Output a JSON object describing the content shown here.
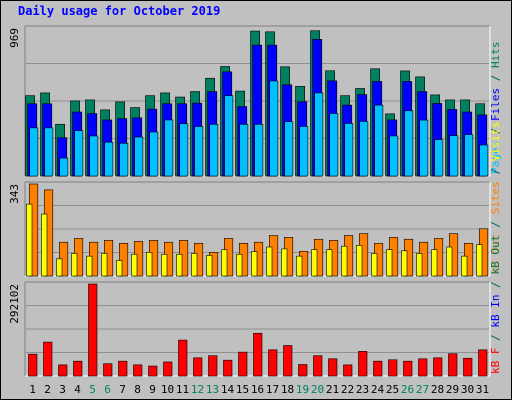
{
  "title": "Daily usage for October 2019",
  "chart_data": [
    {
      "type": "bar",
      "panel": "pages-files-hits",
      "x": [
        1,
        2,
        3,
        4,
        5,
        6,
        7,
        8,
        9,
        10,
        11,
        12,
        13,
        14,
        15,
        16,
        17,
        18,
        19,
        20,
        21,
        22,
        23,
        24,
        25,
        26,
        27,
        28,
        29,
        30,
        31
      ],
      "ymax_label": "969",
      "ylim": [
        0,
        969
      ],
      "grid": true,
      "right_label": [
        {
          "text": "Pages",
          "color": "#00c0ff"
        },
        {
          "text": " / ",
          "color": "#006060"
        },
        {
          "text": "Files",
          "color": "#0000ff"
        },
        {
          "text": " / ",
          "color": "#006060"
        },
        {
          "text": "Hits",
          "color": "#008060"
        }
      ],
      "series": [
        {
          "name": "Hits",
          "color": "#008060",
          "values": [
            526,
            544,
            339,
            492,
            498,
            433,
            485,
            448,
            526,
            544,
            517,
            553,
            640,
            717,
            556,
            949,
            944,
            715,
            587,
            951,
            689,
            526,
            573,
            702,
            407,
            688,
            649,
            531,
            498,
            498,
            473
          ]
        },
        {
          "name": "Files",
          "color": "#0000ff",
          "values": [
            473,
            473,
            251,
            419,
            409,
            367,
            376,
            381,
            438,
            473,
            473,
            477,
            553,
            682,
            455,
            857,
            857,
            597,
            487,
            895,
            623,
            464,
            533,
            619,
            367,
            619,
            553,
            475,
            436,
            419,
            400
          ]
        },
        {
          "name": "Pages",
          "color": "#00c0ff",
          "values": [
            315,
            315,
            117,
            297,
            262,
            221,
            214,
            255,
            288,
            367,
            342,
            324,
            338,
            526,
            338,
            338,
            622,
            356,
            324,
            544,
            409,
            344,
            357,
            464,
            262,
            427,
            366,
            238,
            264,
            271,
            203
          ]
        }
      ]
    },
    {
      "type": "bar",
      "panel": "kbout-sites-visits",
      "x": [
        1,
        2,
        3,
        4,
        5,
        6,
        7,
        8,
        9,
        10,
        11,
        12,
        13,
        14,
        15,
        16,
        17,
        18,
        19,
        20,
        21,
        22,
        23,
        24,
        25,
        26,
        27,
        28,
        29,
        30,
        31
      ],
      "ymax_label": "343",
      "ylim": [
        0,
        343
      ],
      "grid": true,
      "right_label": [
        {
          "text": "kB Out",
          "color": "#ff8000"
        },
        {
          "text": " / ",
          "color": "#006060"
        },
        {
          "text": "Sites",
          "color": "#ff8000"
        },
        {
          "text": " / ",
          "color": "#006060"
        },
        {
          "text": "Visits",
          "color": "#ffff00"
        }
      ],
      "series": [
        {
          "name": "kB Out",
          "color": "#ff8000",
          "values": [
            0,
            0,
            0,
            0,
            0,
            0,
            0,
            0,
            0,
            0,
            0,
            0,
            0,
            0,
            0,
            0,
            0,
            0,
            0,
            0,
            0,
            0,
            0,
            0,
            0,
            0,
            0,
            0,
            0,
            0,
            0
          ]
        },
        {
          "name": "Sites",
          "color": "#ff8000",
          "values": [
            343,
            321,
            126,
            140,
            126,
            133,
            122,
            129,
            133,
            126,
            133,
            122,
            88,
            140,
            122,
            126,
            151,
            144,
            92,
            137,
            133,
            151,
            158,
            122,
            144,
            137,
            126,
            140,
            158,
            122,
            176
          ]
        },
        {
          "name": "Visits",
          "color": "#ffff00",
          "values": [
            268,
            231,
            64,
            84,
            74,
            84,
            58,
            81,
            88,
            81,
            81,
            84,
            77,
            98,
            81,
            91,
            108,
            101,
            74,
            98,
            98,
            111,
            114,
            84,
            98,
            94,
            84,
            98,
            108,
            74,
            117
          ]
        }
      ]
    },
    {
      "type": "bar",
      "panel": "kbf-kbin-kbout",
      "x": [
        1,
        2,
        3,
        4,
        5,
        6,
        7,
        8,
        9,
        10,
        11,
        12,
        13,
        14,
        15,
        16,
        17,
        18,
        19,
        20,
        21,
        22,
        23,
        24,
        25,
        26,
        27,
        28,
        29,
        30,
        31
      ],
      "ymax_label": "292102",
      "ylim": [
        0,
        292102
      ],
      "grid": true,
      "right_label": [
        {
          "text": "kB F",
          "color": "#ff0000"
        },
        {
          "text": " / ",
          "color": "#006060"
        },
        {
          "text": "kB In",
          "color": "#0000ff"
        },
        {
          "text": " / ",
          "color": "#006060"
        },
        {
          "text": "kB Out",
          "color": "#008060"
        }
      ],
      "series": [
        {
          "name": "kB F",
          "color": "#ff0000",
          "values": [
            69400,
            107600,
            35300,
            47100,
            292100,
            39000,
            47100,
            35300,
            31600,
            44600,
            114000,
            57600,
            64400,
            50200,
            75800,
            135700,
            83100,
            96800,
            36500,
            64400,
            54600,
            35300,
            78200,
            47100,
            51400,
            47100,
            54600,
            57600,
            70700,
            56400,
            83100
          ]
        }
      ]
    }
  ],
  "x_labels": [
    {
      "text": "1",
      "color": "#000000"
    },
    {
      "text": "2",
      "color": "#000000"
    },
    {
      "text": "3",
      "color": "#000000"
    },
    {
      "text": "4",
      "color": "#000000"
    },
    {
      "text": "5",
      "color": "#008060"
    },
    {
      "text": "6",
      "color": "#008060"
    },
    {
      "text": "7",
      "color": "#000000"
    },
    {
      "text": "8",
      "color": "#000000"
    },
    {
      "text": "9",
      "color": "#000000"
    },
    {
      "text": "10",
      "color": "#000000"
    },
    {
      "text": "11",
      "color": "#000000"
    },
    {
      "text": "12",
      "color": "#008060"
    },
    {
      "text": "13",
      "color": "#008060"
    },
    {
      "text": "14",
      "color": "#000000"
    },
    {
      "text": "15",
      "color": "#000000"
    },
    {
      "text": "16",
      "color": "#000000"
    },
    {
      "text": "17",
      "color": "#000000"
    },
    {
      "text": "18",
      "color": "#000000"
    },
    {
      "text": "19",
      "color": "#008060"
    },
    {
      "text": "20",
      "color": "#008060"
    },
    {
      "text": "21",
      "color": "#000000"
    },
    {
      "text": "22",
      "color": "#000000"
    },
    {
      "text": "23",
      "color": "#000000"
    },
    {
      "text": "24",
      "color": "#000000"
    },
    {
      "text": "25",
      "color": "#000000"
    },
    {
      "text": "26",
      "color": "#008060"
    },
    {
      "text": "27",
      "color": "#008060"
    },
    {
      "text": "28",
      "color": "#000000"
    },
    {
      "text": "29",
      "color": "#000000"
    },
    {
      "text": "30",
      "color": "#000000"
    },
    {
      "text": "31",
      "color": "#000000"
    }
  ]
}
